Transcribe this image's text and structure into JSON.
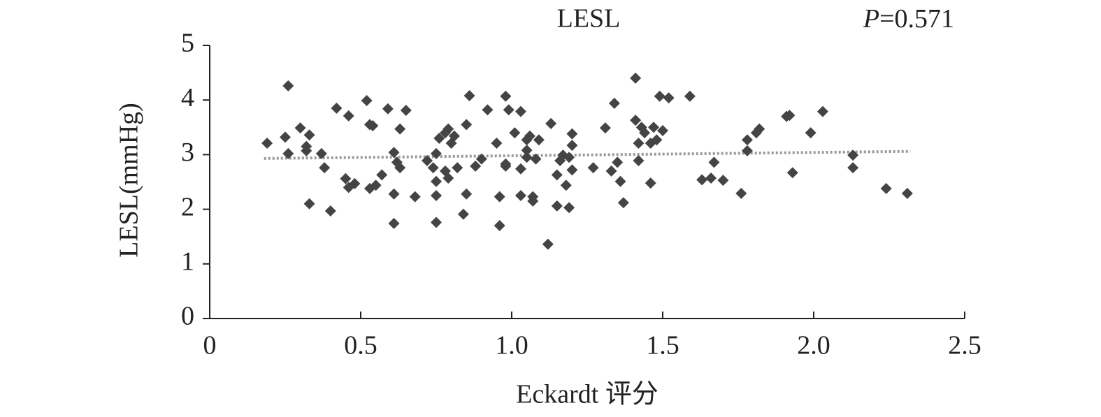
{
  "chart_data": {
    "type": "scatter",
    "title": "LESL",
    "annotation": {
      "italic": "P",
      "text": "=0.571"
    },
    "x_label": "Eckardt 评分",
    "y_label": "LESL(mmHg)",
    "color": "#444444",
    "x": [
      0.19,
      0.26,
      0.25,
      0.26,
      0.3,
      0.33,
      0.32,
      0.32,
      0.37,
      0.38,
      0.33,
      0.4,
      0.42,
      0.46,
      0.45,
      0.46,
      0.48,
      0.52,
      0.53,
      0.54,
      0.53,
      0.55,
      0.57,
      0.59,
      0.65,
      0.63,
      0.61,
      0.62,
      0.63,
      0.61,
      0.61,
      0.68,
      0.72,
      0.74,
      0.75,
      0.75,
      0.75,
      0.75,
      0.76,
      0.78,
      0.79,
      0.8,
      0.81,
      0.78,
      0.79,
      0.82,
      0.85,
      0.86,
      0.85,
      0.84,
      0.88,
      0.9,
      0.92,
      0.95,
      0.96,
      0.96,
      0.98,
      0.98,
      0.98,
      0.99,
      1.01,
      1.03,
      1.03,
      1.03,
      1.05,
      1.05,
      1.05,
      1.06,
      1.07,
      1.07,
      1.08,
      1.09,
      1.12,
      1.13,
      1.15,
      1.15,
      1.16,
      1.17,
      1.18,
      1.19,
      1.19,
      1.2,
      1.2,
      1.2,
      1.27,
      1.31,
      1.34,
      1.33,
      1.35,
      1.36,
      1.37,
      1.41,
      1.41,
      1.42,
      1.42,
      1.43,
      1.44,
      1.46,
      1.47,
      1.46,
      1.48,
      1.5,
      1.49,
      1.52,
      1.59,
      1.63,
      1.66,
      1.67,
      1.7,
      1.76,
      1.78,
      1.78,
      1.81,
      1.82,
      1.91,
      1.92,
      1.93,
      1.99,
      2.03,
      2.13,
      2.13,
      2.24,
      2.31
    ],
    "values": [
      3.21,
      4.26,
      3.32,
      3.02,
      3.49,
      3.36,
      3.15,
      3.07,
      3.02,
      2.76,
      2.1,
      1.97,
      3.85,
      3.71,
      2.56,
      2.4,
      2.47,
      3.99,
      3.55,
      3.53,
      2.38,
      2.44,
      2.63,
      3.84,
      3.81,
      3.47,
      3.04,
      2.86,
      2.76,
      2.28,
      1.74,
      2.23,
      2.89,
      2.76,
      3.02,
      2.51,
      2.25,
      1.76,
      3.3,
      3.4,
      3.47,
      3.21,
      3.34,
      2.7,
      2.57,
      2.76,
      3.55,
      4.08,
      2.28,
      1.91,
      2.79,
      2.92,
      3.82,
      3.21,
      2.23,
      1.7,
      2.83,
      2.79,
      4.07,
      3.82,
      3.4,
      3.79,
      2.74,
      2.25,
      3.27,
      3.08,
      2.95,
      3.34,
      2.23,
      2.15,
      2.92,
      3.27,
      1.36,
      3.57,
      2.63,
      2.06,
      2.89,
      2.99,
      2.44,
      2.95,
      2.03,
      3.17,
      3.38,
      2.72,
      2.76,
      3.49,
      3.94,
      2.7,
      2.86,
      2.51,
      2.12,
      4.4,
      3.63,
      3.21,
      2.89,
      3.5,
      3.4,
      3.21,
      3.5,
      2.48,
      3.27,
      3.44,
      4.07,
      4.04,
      4.07,
      2.54,
      2.57,
      2.86,
      2.53,
      2.29,
      3.27,
      3.07,
      3.4,
      3.47,
      3.7,
      3.72,
      2.67,
      3.4,
      3.79,
      2.99,
      2.76,
      2.38,
      2.29
    ],
    "trendline": {
      "x": [
        0.18,
        2.32
      ],
      "y": [
        2.93,
        3.06
      ],
      "color": "#999999"
    },
    "xlim": [
      0,
      2.5
    ],
    "xticks": [
      0,
      0.5,
      {
        "value": 1,
        "label": "1.0"
      },
      1.5,
      {
        "value": 2,
        "label": "2.0"
      },
      2.5
    ],
    "ylim": [
      0,
      5
    ],
    "yticks": [
      0,
      1,
      2,
      3,
      4,
      5
    ]
  }
}
